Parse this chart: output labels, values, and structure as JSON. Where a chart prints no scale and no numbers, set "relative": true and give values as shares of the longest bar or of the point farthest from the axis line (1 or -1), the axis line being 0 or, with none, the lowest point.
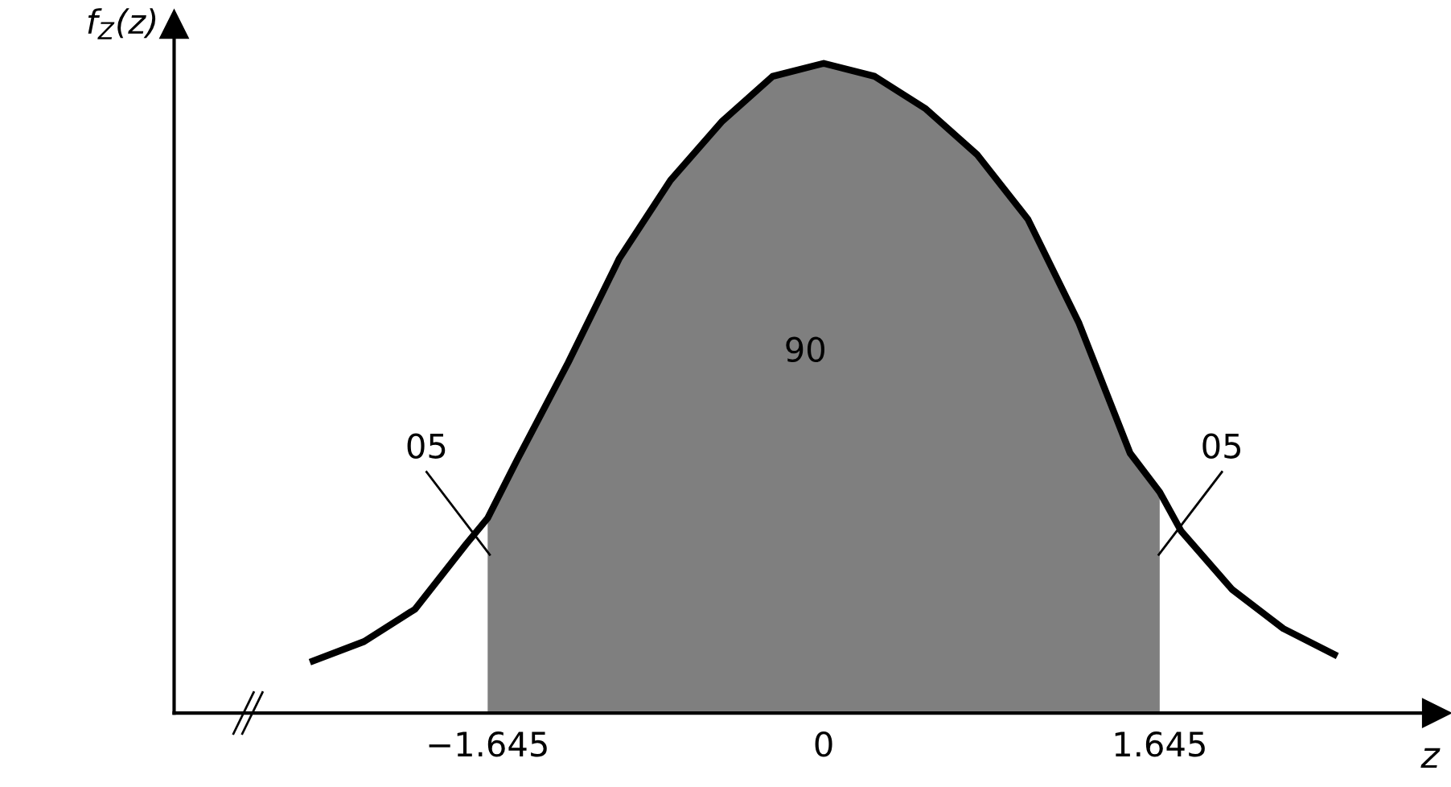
{
  "chart_data": {
    "type": "line",
    "relative": true,
    "xlabel": "z",
    "ylabel": "f$_{Z}$(z)",
    "x": [
      -2.5,
      -2.25,
      -2.0,
      -1.75,
      -1.645,
      -1.5,
      -1.25,
      -1.0,
      -0.75,
      -0.5,
      -0.25,
      0,
      0.25,
      0.5,
      0.75,
      1.0,
      1.25,
      1.5,
      1.645,
      1.75,
      2.0,
      2.25,
      2.5
    ],
    "series": [
      {
        "type": "area",
        "color": "#7f7f7f",
        "x": [
          -1.645,
          -1.5,
          -1.25,
          -1.0,
          -0.75,
          -0.5,
          -0.25,
          0,
          0.25,
          0.5,
          0.75,
          1.0,
          1.25,
          1.5,
          1.645
        ],
        "values": [
          0.3,
          0.39,
          0.54,
          0.7,
          0.82,
          0.91,
          0.98,
          1,
          0.98,
          0.93,
          0.86,
          0.76,
          0.6,
          0.4,
          0.34
        ]
      },
      {
        "color": "#000000",
        "values": [
          0.08,
          0.11,
          0.16,
          0.26,
          0.3,
          0.39,
          0.54,
          0.7,
          0.82,
          0.91,
          0.98,
          1,
          0.98,
          0.93,
          0.86,
          0.76,
          0.6,
          0.4,
          0.34,
          0.28,
          0.19,
          0.13,
          0.09
        ]
      }
    ],
    "xlim": [
      -3.18,
      3.0
    ],
    "xticks": [
      -1.645,
      0,
      1.645
    ],
    "annotations": [
      "05",
      "90",
      "05"
    ],
    "marker": "none",
    "line_style": "solid",
    "grid": false
  }
}
